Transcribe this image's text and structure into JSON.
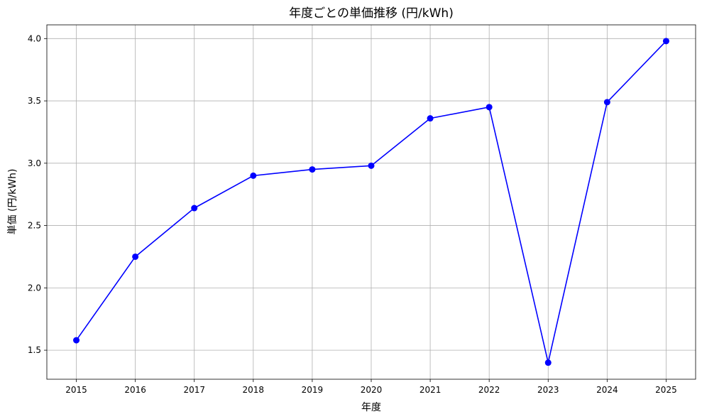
{
  "chart_data": {
    "type": "line",
    "title": "年度ごとの単価推移 (円/kWh)",
    "xlabel": "年度",
    "ylabel": "単価 (円/kWh)",
    "x": [
      2015,
      2016,
      2017,
      2018,
      2019,
      2020,
      2021,
      2022,
      2023,
      2024,
      2025
    ],
    "series": [
      {
        "values": [
          1.58,
          2.25,
          2.64,
          2.9,
          2.95,
          2.98,
          3.36,
          3.45,
          1.4,
          3.49,
          3.98
        ],
        "color": "#0000ff",
        "marker": "circle"
      }
    ],
    "xlim": [
      2014.5,
      2025.5
    ],
    "ylim": [
      1.267,
      4.11
    ],
    "yticks": [
      "1.5",
      "2.0",
      "2.5",
      "3.0",
      "3.5",
      "4.0"
    ],
    "xticks": [
      "2015",
      "2016",
      "2017",
      "2018",
      "2019",
      "2020",
      "2021",
      "2022",
      "2023",
      "2024",
      "2025"
    ],
    "grid": true
  }
}
